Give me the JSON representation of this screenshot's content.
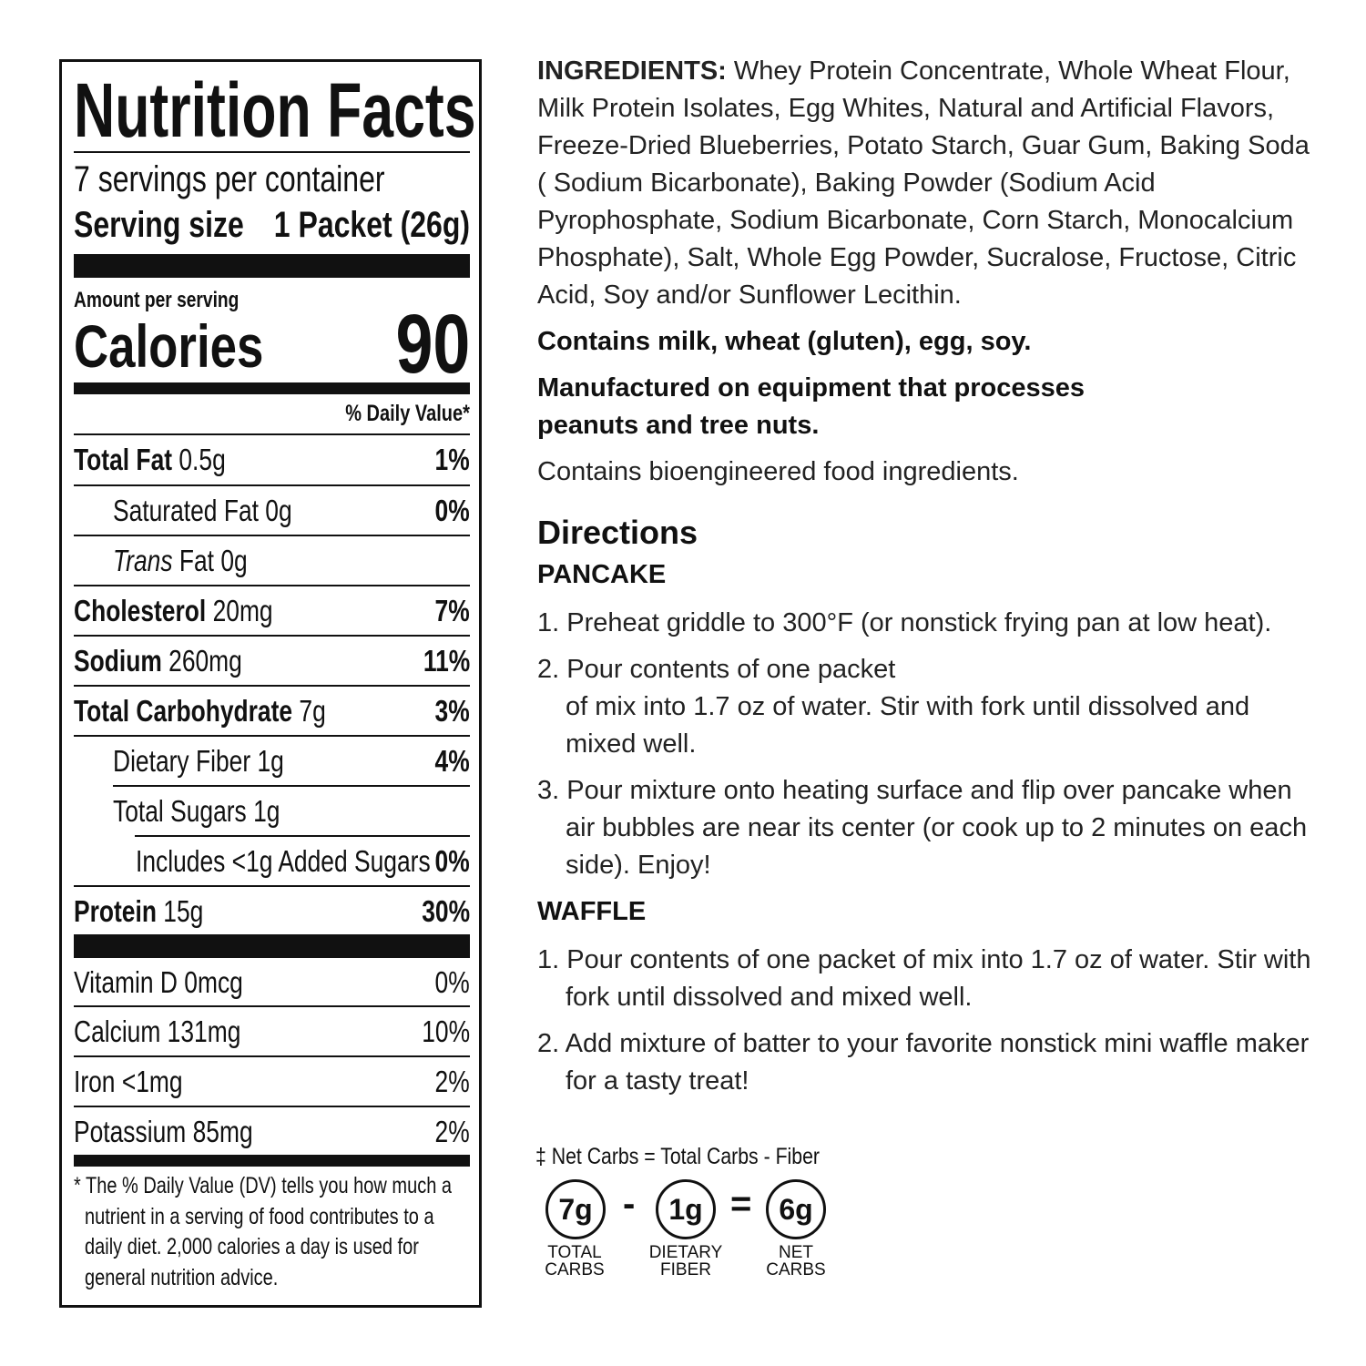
{
  "label": {
    "title": "Nutrition Facts",
    "servings": "7 servings per container",
    "serving_size_label": "Serving size",
    "serving_size_value": "1 Packet (26g)",
    "amount_per_serving": "Amount per serving",
    "calories_label": "Calories",
    "calories_value": "90",
    "dv_header": "% Daily Value*",
    "rows": [
      {
        "name": "Total Fat",
        "amount": "0.5g",
        "dv": "1%"
      },
      {
        "name": "Saturated Fat",
        "amount": "0g",
        "dv": "0%"
      },
      {
        "name": "Trans",
        "suffix": "Fat 0g",
        "dv": ""
      },
      {
        "name": "Cholesterol",
        "amount": "20mg",
        "dv": "7%"
      },
      {
        "name": "Sodium",
        "amount": "260mg",
        "dv": "11%"
      },
      {
        "name": "Total Carbohydrate",
        "amount": "7g",
        "dv": "3%"
      },
      {
        "name": "Dietary Fiber",
        "amount": "1g",
        "dv": "4%"
      },
      {
        "name": "Total Sugars",
        "amount": "1g",
        "dv": ""
      },
      {
        "name": "Includes <1g Added Sugars",
        "amount": "",
        "dv": "0%"
      },
      {
        "name": "Protein",
        "amount": "15g",
        "dv": "30%"
      }
    ],
    "vitamins": [
      {
        "name": "Vitamin D 0mcg",
        "dv": "0%"
      },
      {
        "name": "Calcium 131mg",
        "dv": "10%"
      },
      {
        "name": "Iron <1mg",
        "dv": "2%"
      },
      {
        "name": "Potassium 85mg",
        "dv": "2%"
      }
    ],
    "footnote": "* The % Daily Value (DV) tells you how much a nutrient in a serving of food contributes to a daily diet. 2,000 calories a day is used for general nutrition advice."
  },
  "ingredients": {
    "label": "INGREDIENTS:",
    "text": " Whey Protein Concentrate, Whole Wheat Flour, Milk Protein Isolates, Egg Whites, Natural and Artificial Flavors, Freeze-Dried Blueberries, Potato Starch, Guar Gum, Baking Soda ( Sodium Bicarbonate), Baking Powder (Sodium Acid Pyrophosphate, Sodium Bicarbonate, Corn Starch, Monocalcium Phosphate), Salt, Whole Egg Powder, Sucralose, Fructose, Citric Acid, Soy and/or Sunflower Lecithin.",
    "allergens": "Contains milk, wheat (gluten), egg, soy.",
    "manufactured": "Manufactured on equipment that processes peanuts and tree nuts.",
    "bioengineered": "Contains bioengineered food ingredients."
  },
  "directions": {
    "title": "Directions",
    "pancake_title": "PANCAKE",
    "pancake": [
      "1. Preheat griddle to 300°F (or nonstick frying pan at low heat).",
      "2. Pour contents of one packet",
      "of mix into 1.7 oz of water. Stir with fork until dissolved and mixed well.",
      "3. Pour mixture onto heating surface and flip over pancake when air bubbles are near its center (or cook up to 2 minutes on each side). Enjoy!"
    ],
    "waffle_title": "WAFFLE",
    "waffle": [
      "1. Pour contents of one packet of mix into 1.7 oz of water. Stir with fork until dissolved and mixed well.",
      "2. Add mixture of batter to your favorite nonstick mini waffle maker for a tasty treat!"
    ]
  },
  "net_carbs": {
    "formula": "‡ Net Carbs = Total Carbs - Fiber",
    "total": "7g",
    "total_label_1": "TOTAL",
    "total_label_2": "CARBS",
    "minus": "-",
    "fiber": "1g",
    "fiber_label_1": "DIETARY",
    "fiber_label_2": "FIBER",
    "equals": "=",
    "net": "6g",
    "net_label_1": "NET",
    "net_label_2": "CARBS"
  }
}
